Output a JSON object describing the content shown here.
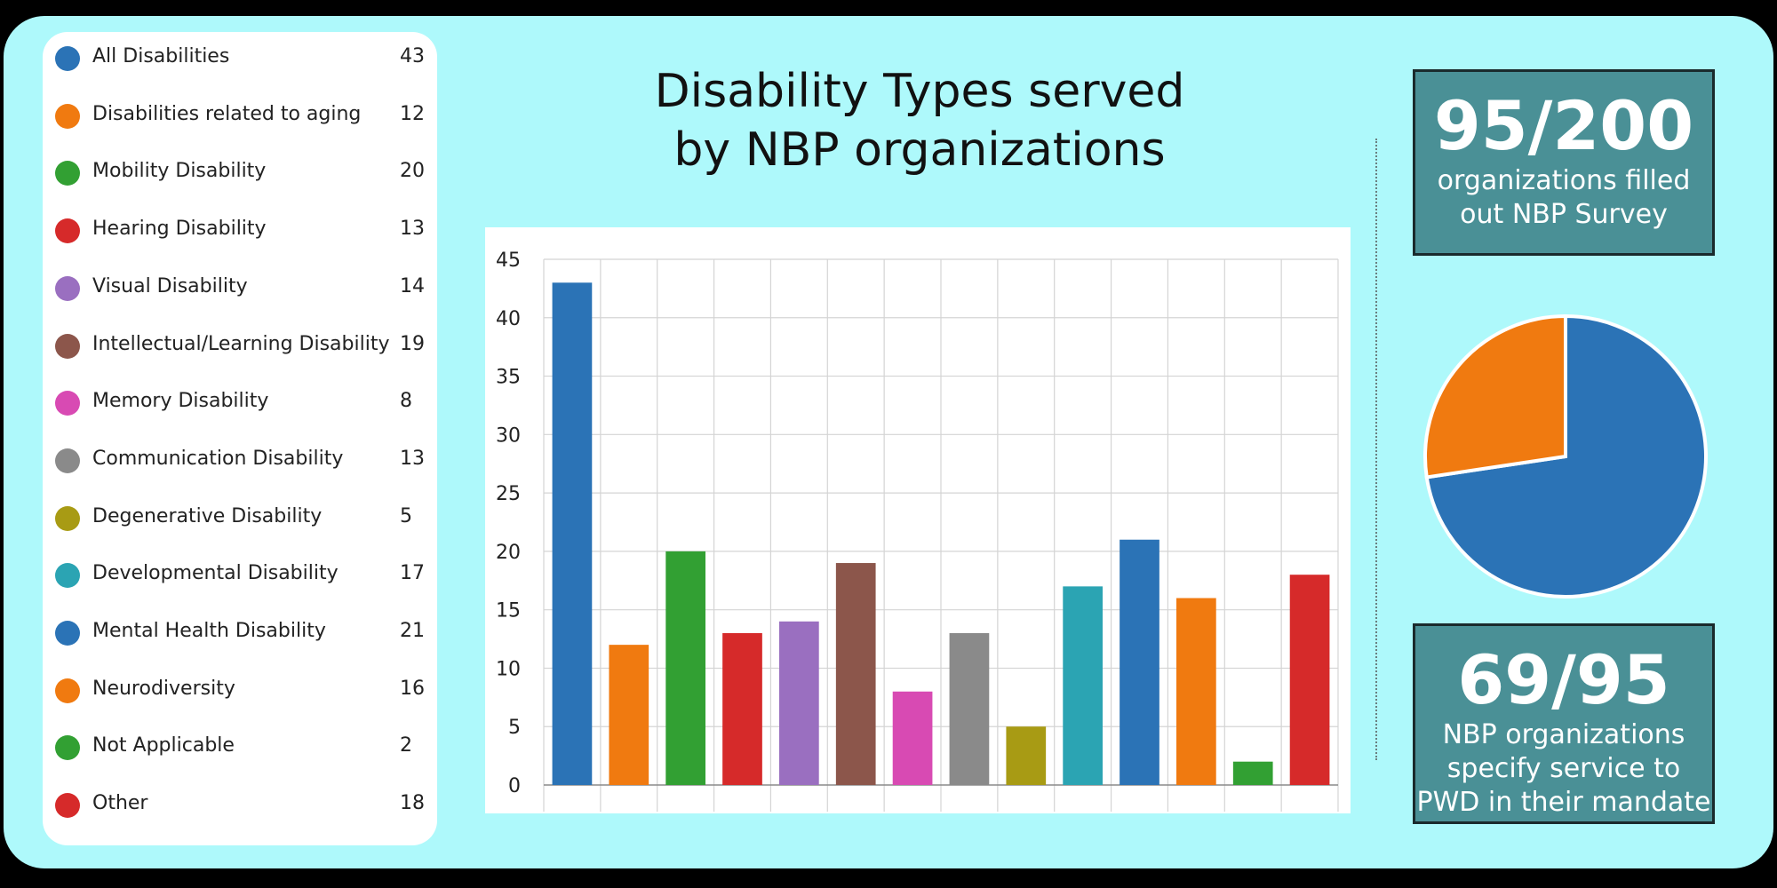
{
  "colors": {
    "panel_bg": "#aef9fb",
    "stat_bg": "#4a9096",
    "blue": "#2b73b6",
    "orange": "#f07a10",
    "green": "#32a033",
    "red": "#d62a2a",
    "purple": "#9a6fc0",
    "brown": "#8c564b",
    "pink": "#d84ab3",
    "gray": "#8a8a8a",
    "olive": "#a89b14",
    "teal": "#2ba4b3"
  },
  "chart_data": [
    {
      "type": "bar",
      "title": "Disability Types served by NBP organizations",
      "xlabel": "",
      "ylabel": "",
      "ylim": [
        0,
        45
      ],
      "yticks": [
        "0",
        "5",
        "10",
        "15",
        "20",
        "25",
        "30",
        "35",
        "40",
        "45"
      ],
      "grid": true,
      "legend_placement": "left",
      "categories": [
        "All Disabilities",
        "Disabilities related to aging",
        "Mobility Disability",
        "Hearing Disability",
        "Visual Disability",
        "Intellectual/Learning Disability",
        "Memory Disability",
        "Communication Disability",
        "Degenerative Disability",
        "Developmental Disability",
        "Mental Health Disability",
        "Neurodiversity",
        "Not Applicable",
        "Other"
      ],
      "values": [
        43,
        12,
        20,
        13,
        14,
        19,
        8,
        13,
        5,
        17,
        21,
        16,
        2,
        18
      ],
      "bar_colors": [
        "#2b73b6",
        "#f07a10",
        "#32a033",
        "#d62a2a",
        "#9a6fc0",
        "#8c564b",
        "#d84ab3",
        "#8a8a8a",
        "#a89b14",
        "#2ba4b3",
        "#2b73b6",
        "#f07a10",
        "#32a033",
        "#d62a2a"
      ]
    },
    {
      "type": "pie",
      "values": [
        69,
        26
      ],
      "slice_colors": [
        "#2b73b6",
        "#f07a10"
      ]
    }
  ],
  "stats": {
    "top": {
      "value": "95/200",
      "text_line1": "organizations filled",
      "text_line2": "out NBP Survey"
    },
    "bottom": {
      "value": "69/95",
      "text_line1": "NBP organizations",
      "text_line2": "specify service to",
      "text_line3": "PWD in their mandate"
    }
  }
}
